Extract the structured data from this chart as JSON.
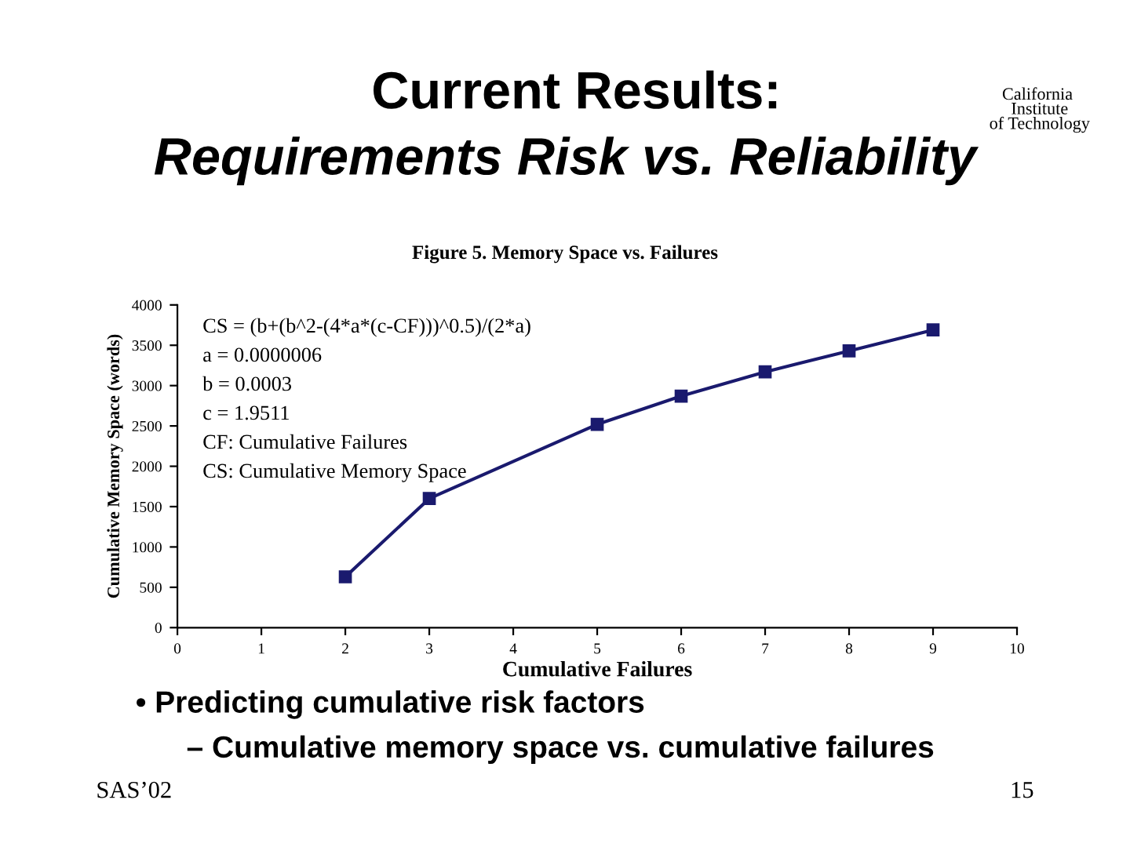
{
  "chart_data": {
    "type": "line",
    "title": "Current Results:",
    "subtitle": "Requirements Risk vs. Reliability",
    "xlabel": "Cumulative Failures",
    "ylabel": "Cumulative Memory Space (words)",
    "annotations": [
      "Figure 5. Memory Space vs. Failures",
      "CS = (b+(b^2-(4*a*(c-CF)))^0.5)/(2*a)",
      "a = 0.0000006",
      "b = 0.0003",
      "c = 1.9511",
      "CF: Cumulative Failures",
      "CS: Cumulative Memory Space",
      "• Predicting cumulative risk factors",
      "– Cumulative memory space vs. cumulative failures",
      "SAS’02",
      "15",
      "California Institute of Technology"
    ],
    "x": [
      2,
      3,
      5,
      6,
      7,
      8,
      9
    ],
    "series": [
      {
        "color": "#1a1a6e",
        "values": [
          630,
          1600,
          2520,
          2870,
          3170,
          3430,
          3690
        ]
      }
    ],
    "xlim": [
      0,
      10
    ],
    "ylim": [
      0,
      4000
    ],
    "xticks": [
      0,
      1,
      2,
      3,
      4,
      5,
      6,
      7,
      8,
      9,
      10
    ],
    "yticks": [
      0,
      500,
      1000,
      1500,
      2000,
      2500,
      3000,
      3500,
      4000
    ],
    "marker": "square",
    "line_style": "solid",
    "grid": false,
    "legend": false
  }
}
